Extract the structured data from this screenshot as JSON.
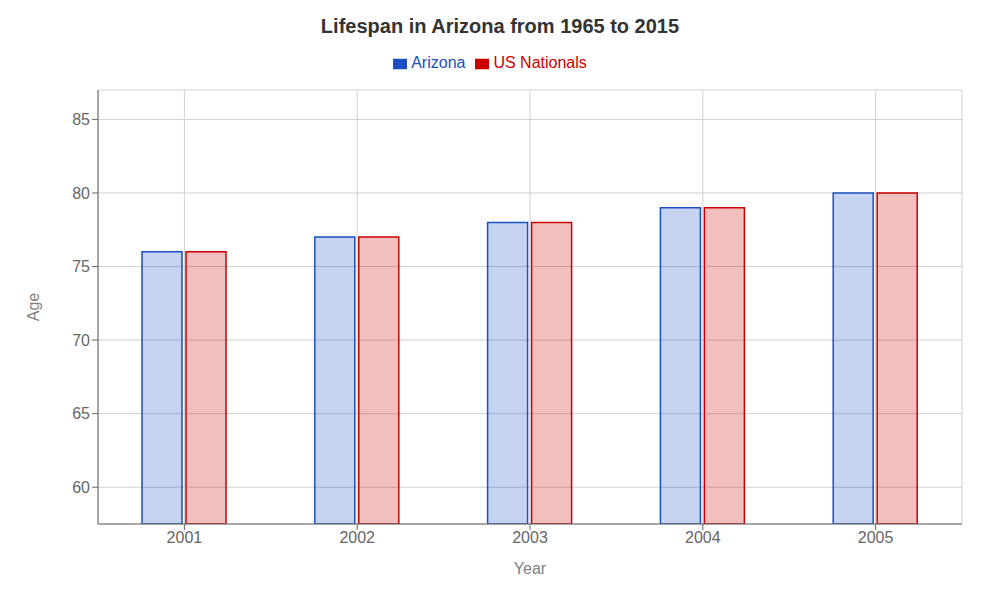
{
  "chart_data": {
    "type": "bar",
    "title": "Lifespan in Arizona from 1965 to 2015",
    "xlabel": "Year",
    "ylabel": "Age",
    "categories": [
      "2001",
      "2002",
      "2003",
      "2004",
      "2005"
    ],
    "series": [
      {
        "name": "Arizona",
        "color": "#1a4fc4",
        "values": [
          76,
          77,
          78,
          79,
          80
        ]
      },
      {
        "name": "US Nationals",
        "color": "#cc0000",
        "values": [
          76,
          77,
          78,
          79,
          80
        ]
      }
    ],
    "ylim": [
      57.5,
      87
    ],
    "yticks": [
      60,
      65,
      70,
      75,
      80,
      85
    ],
    "grid": true,
    "legend": "top"
  }
}
